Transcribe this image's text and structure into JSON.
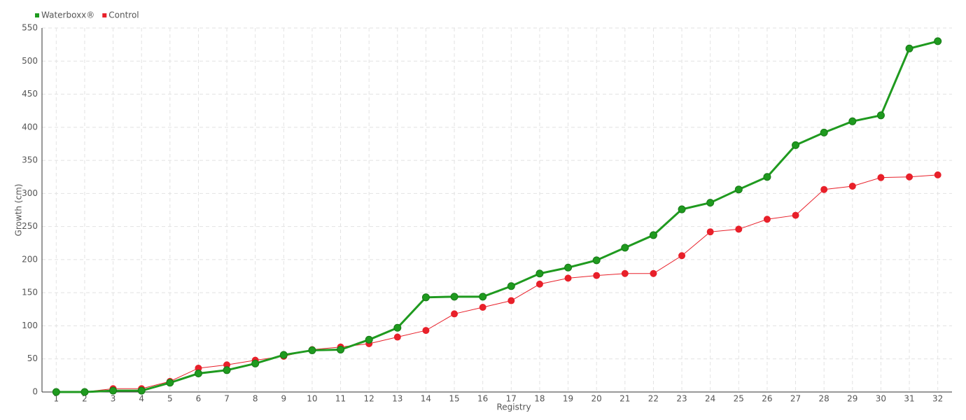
{
  "chart_data": {
    "type": "line",
    "x_label": "Registry",
    "y_label": "Growth (cm)",
    "categories": [
      "1",
      "2",
      "3",
      "4",
      "5",
      "6",
      "7",
      "8",
      "9",
      "10",
      "11",
      "12",
      "13",
      "14",
      "15",
      "16",
      "17",
      "18",
      "19",
      "20",
      "21",
      "22",
      "23",
      "24",
      "25",
      "26",
      "27",
      "28",
      "29",
      "30",
      "31",
      "32"
    ],
    "series": [
      {
        "name": "Waterboxx®",
        "color": "#1f9a1f",
        "values": [
          0,
          0,
          2,
          2,
          14,
          28,
          33,
          43,
          56,
          63,
          64,
          79,
          97,
          143,
          144,
          144,
          160,
          179,
          188,
          199,
          218,
          237,
          276,
          286,
          306,
          325,
          373,
          392,
          409,
          418,
          519,
          530
        ]
      },
      {
        "name": "Control",
        "color": "#e8202a",
        "values": [
          0,
          0,
          5,
          5,
          16,
          36,
          41,
          48,
          54,
          64,
          68,
          73,
          83,
          93,
          118,
          128,
          138,
          163,
          172,
          176,
          179,
          179,
          206,
          242,
          246,
          261,
          267,
          306,
          311,
          324,
          325,
          328
        ]
      }
    ],
    "ylim": [
      0,
      550
    ],
    "yticks": [
      0,
      50,
      100,
      150,
      200,
      250,
      300,
      350,
      400,
      450,
      500,
      550
    ],
    "grid": true
  }
}
